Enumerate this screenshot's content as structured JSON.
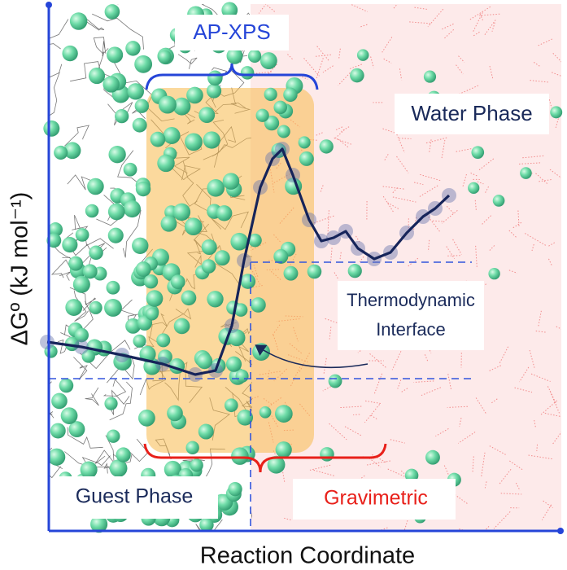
{
  "labels": {
    "top_method": "AP-XPS",
    "water_phase": "Water Phase",
    "interface": [
      "Thermodynamic",
      "Interface"
    ],
    "guest_phase": "Guest Phase",
    "bottom_method": "Gravimetric",
    "x_axis": "Reaction Coordinate",
    "y_axis": "ΔGº (kJ mol⁻¹)"
  }
}
